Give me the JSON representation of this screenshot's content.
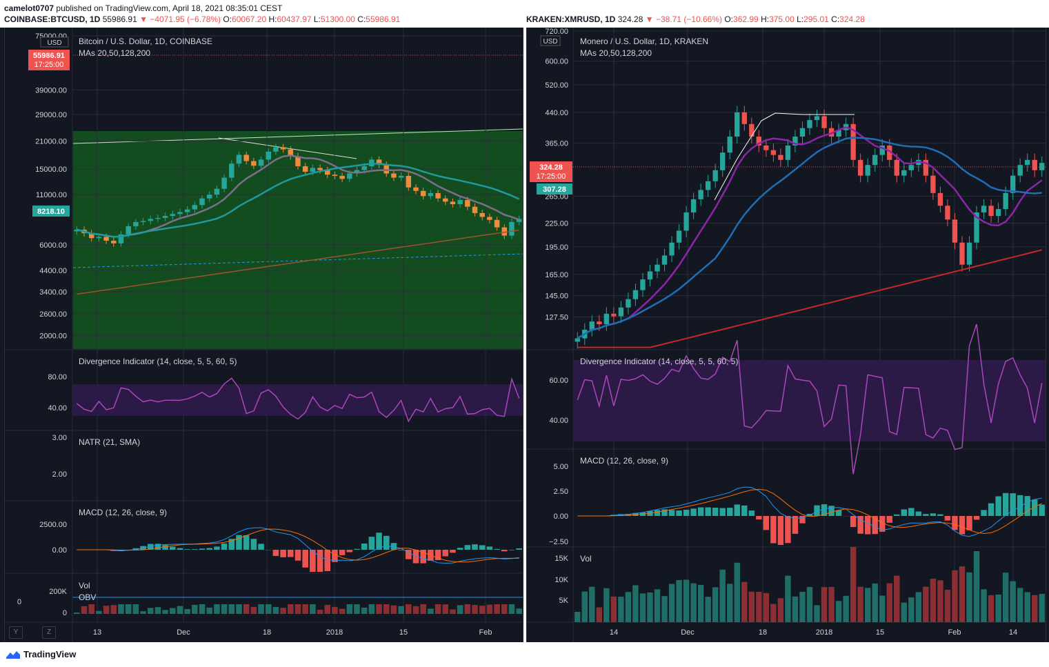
{
  "publish_line": {
    "user": "camelot0707",
    "text": "published on TradingView.com, April 18, 2021 08:35:01 CEST"
  },
  "footer": {
    "brand": "TradingView"
  },
  "left": {
    "symbol": "COINBASE:BTCUSD, 1D",
    "last": "55986.91",
    "change": "▼ −4071.95 (−6.78%)",
    "ohlc": {
      "O": "60067.20",
      "H": "60437.97",
      "L": "51300.00",
      "C": "55986.91"
    },
    "chart_title": "Bitcoin / U.S. Dollar, 1D, COINBASE",
    "ma_label": "MAs 20,50,128,200",
    "currency": "USD",
    "price_tag": "55986.91",
    "time_tag": "17:25:00",
    "ma_tag": "8218.10",
    "price_ticks": [
      "75000.00",
      "39000.00",
      "29000.00",
      "21000.00",
      "15000.00",
      "11000.00",
      "6000.00",
      "4400.00",
      "3400.00",
      "2600.00",
      "2000.00"
    ],
    "div_label": "Divergence Indicator (14, close, 5, 5, 60, 5)",
    "div_ticks": [
      "80.00",
      "40.00"
    ],
    "natr_label": "NATR (21, SMA)",
    "natr_ticks": [
      "3.00",
      "2.00"
    ],
    "macd_label": "MACD (12, 26, close, 9)",
    "macd_ticks": [
      "2500.00",
      "0.00"
    ],
    "vol_label": "Vol",
    "obv_label": "OBV",
    "vol_ticks": [
      "200K",
      "0"
    ],
    "vol_left_tick": "0",
    "x_ticks": [
      "13",
      "Dec",
      "18",
      "2018",
      "15",
      "Feb"
    ],
    "scale_buttons": [
      "Y",
      "Z"
    ]
  },
  "right": {
    "symbol": "KRAKEN:XMRUSD, 1D",
    "last": "324.28",
    "change": "▼ −38.71 (−10.66%)",
    "ohlc": {
      "O": "362.99",
      "H": "375.00",
      "L": "295.01",
      "C": "324.28"
    },
    "chart_title": "Monero / U.S. Dollar, 1D, KRAKEN",
    "ma_label": "MAs 20,50,128,200",
    "currency": "USD",
    "price_tag": "324.28",
    "time_tag": "17:25:00",
    "ma_tag": "307.28",
    "price_ticks": [
      "720.00",
      "600.00",
      "520.00",
      "440.00",
      "365.00",
      "265.00",
      "225.00",
      "195.00",
      "165.00",
      "145.00",
      "127.50"
    ],
    "div_label": "Divergence Indicator (14, close, 5, 5, 60, 5)",
    "div_ticks": [
      "60.00",
      "40.00"
    ],
    "macd_label": "MACD (12, 26, close, 9)",
    "macd_ticks": [
      "5.00",
      "2.50",
      "0.00",
      "−2.50"
    ],
    "vol_label": "Vol",
    "vol_ticks": [
      "15K",
      "10K",
      "5K"
    ],
    "x_ticks": [
      "14",
      "Dec",
      "18",
      "2018",
      "15",
      "Feb",
      "14"
    ]
  },
  "chart_data": [
    {
      "type": "candlestick",
      "title": "Bitcoin / U.S. Dollar, 1D, COINBASE",
      "x": [
        "13",
        "Dec",
        "18",
        "2018",
        "15",
        "Feb"
      ],
      "y_scale": "log",
      "ylim": [
        1700,
        75000
      ],
      "indicators": [
        "MAs 20,50,128,200",
        "Divergence Indicator (14, close, 5, 5, 60, 5)",
        "NATR (21, SMA)",
        "MACD (12, 26, close, 9)",
        "Vol",
        "OBV"
      ],
      "close_series": [
        7200,
        6900,
        6500,
        6600,
        6300,
        6100,
        6800,
        7500,
        7900,
        8000,
        8200,
        8300,
        8500,
        8700,
        8900,
        9200,
        9700,
        10500,
        11000,
        11800,
        13500,
        16000,
        17800,
        16500,
        15600,
        16800,
        18500,
        19500,
        19000,
        17500,
        15500,
        14500,
        15200,
        14800,
        14000,
        13800,
        13300,
        14200,
        14800,
        15500,
        16800,
        15800,
        14200,
        13500,
        13800,
        12000,
        11500,
        10800,
        11200,
        10500,
        10100,
        9800,
        10300,
        9500,
        8800,
        8400,
        8100,
        7400,
        6700,
        7900,
        8200
      ],
      "ma_tag_value": 8218.1,
      "last_price": 55986.91,
      "green_time_zone": true
    },
    {
      "type": "candlestick",
      "title": "Monero / U.S. Dollar, 1D, KRAKEN",
      "x": [
        "14",
        "Dec",
        "18",
        "2018",
        "15",
        "Feb",
        "14"
      ],
      "y_scale": "log",
      "ylim": [
        105,
        720
      ],
      "indicators": [
        "MAs 20,50,128,200",
        "Divergence Indicator (14, close, 5, 5, 60, 5)",
        "MACD (12, 26, close, 9)",
        "Vol"
      ],
      "close_series": [
        112,
        118,
        124,
        122,
        130,
        128,
        135,
        142,
        150,
        160,
        168,
        175,
        185,
        200,
        215,
        240,
        260,
        275,
        290,
        310,
        345,
        380,
        440,
        410,
        380,
        360,
        350,
        340,
        330,
        360,
        380,
        400,
        420,
        430,
        400,
        380,
        395,
        410,
        330,
        300,
        320,
        340,
        360,
        330,
        300,
        310,
        320,
        330,
        300,
        270,
        250,
        230,
        200,
        175,
        200,
        240,
        250,
        235,
        245,
        270,
        300,
        320,
        330,
        310,
        324
      ],
      "ma_tag_value": 307.28,
      "last_price": 324.28
    }
  ]
}
